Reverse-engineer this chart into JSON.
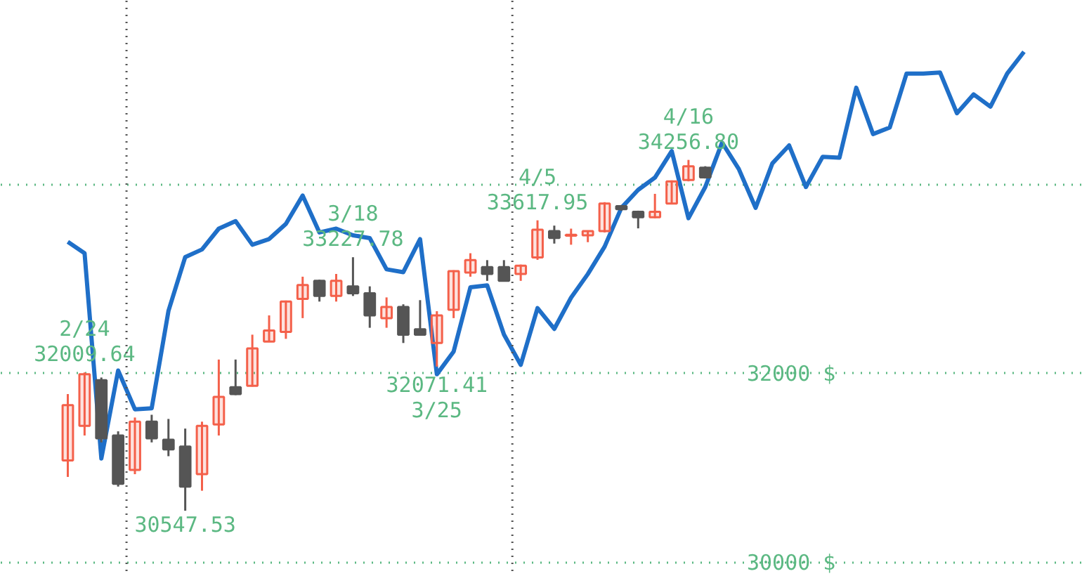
{
  "chart_data": {
    "type": "candlestick",
    "categories": [
      null,
      null,
      null,
      null,
      null,
      null,
      null,
      null,
      null,
      null,
      null,
      null,
      null,
      null,
      null,
      null,
      null,
      null,
      null,
      null,
      null,
      null,
      null,
      null,
      null,
      null,
      null,
      null,
      null,
      null,
      null,
      null,
      null,
      null,
      null,
      null,
      null,
      null,
      null,
      null,
      null,
      null,
      null,
      null,
      null,
      null,
      null,
      null,
      null,
      null,
      null,
      null,
      null,
      null,
      null,
      null,
      null,
      null
    ],
    "ohlc": [
      [
        31080,
        31781,
        30905,
        31664
      ],
      [
        31445,
        32009.64,
        31343,
        31990
      ],
      [
        31927,
        31956,
        31270,
        31314
      ],
      [
        31343,
        31387,
        30803,
        30832
      ],
      [
        30978,
        31533,
        30934,
        31489
      ],
      [
        31489,
        31562,
        31270,
        31314
      ],
      [
        31299,
        31518,
        31124,
        31197
      ],
      [
        31226,
        31416,
        30547.53,
        30803
      ],
      [
        30934,
        31489,
        30759,
        31445
      ],
      [
        31460,
        32146,
        31343,
        31752
      ],
      [
        31854,
        32146,
        31770,
        31781
      ],
      [
        31869,
        32409,
        31860,
        32263
      ],
      [
        32336,
        32613,
        32330,
        32453
      ],
      [
        32438,
        32770,
        32365,
        32759
      ],
      [
        32788,
        33022,
        32584,
        32934
      ],
      [
        32978,
        32990,
        32759,
        32818
      ],
      [
        32818,
        33051,
        32759,
        32978
      ],
      [
        32920,
        33227.78,
        32818,
        32847
      ],
      [
        32847,
        32920,
        32482,
        32613
      ],
      [
        32584,
        32803,
        32482,
        32701
      ],
      [
        32701,
        32730,
        32321,
        32409
      ],
      [
        32467,
        32774,
        32400,
        32409
      ],
      [
        32321,
        32657,
        32071.41,
        32613
      ],
      [
        32672,
        33090,
        32584,
        33080
      ],
      [
        33066,
        33270,
        33022,
        33197
      ],
      [
        33124,
        33197,
        32978,
        33051
      ],
      [
        33124,
        33197,
        32970,
        32978
      ],
      [
        33051,
        33150,
        32978,
        33139
      ],
      [
        33226,
        33617.95,
        33200,
        33518
      ],
      [
        33504,
        33562,
        33372,
        33431
      ],
      [
        33455,
        33530,
        33360,
        33465
      ],
      [
        33460,
        33504,
        33387,
        33504
      ],
      [
        33504,
        33810,
        33490,
        33796
      ],
      [
        33767,
        33780,
        33720,
        33737
      ],
      [
        33708,
        33720,
        33533,
        33650
      ],
      [
        33650,
        33898,
        33640,
        33708
      ],
      [
        33796,
        34040,
        33790,
        34029
      ],
      [
        34044,
        34256.8,
        34030,
        34190
      ],
      [
        34175,
        34190,
        34060,
        34073
      ],
      null,
      null,
      null,
      null,
      null,
      null,
      null,
      null,
      null,
      null,
      null,
      null,
      null,
      null,
      null,
      null,
      null,
      null,
      null
    ],
    "colors": [
      "#f4604a",
      "#f4604a",
      "#555555",
      "#555555",
      "#f4604a",
      "#555555",
      "#555555",
      "#555555",
      "#f4604a",
      "#f4604a",
      "#555555",
      "#f4604a",
      "#f4604a",
      "#f4604a",
      "#f4604a",
      "#555555",
      "#f4604a",
      "#555555",
      "#555555",
      "#f4604a",
      "#555555",
      "#555555",
      "#f4604a",
      "#f4604a",
      "#f4604a",
      "#555555",
      "#555555",
      "#f4604a",
      "#f4604a",
      "#555555",
      "#f4604a",
      "#f4604a",
      "#f4604a",
      "#555555",
      "#555555",
      "#f4604a",
      "#f4604a",
      "#f4604a",
      "#555555",
      null,
      null,
      null,
      null,
      null,
      null,
      null,
      null,
      null,
      null,
      null,
      null,
      null,
      null,
      null,
      null,
      null,
      null,
      null
    ],
    "series": [
      {
        "type": "line",
        "color": "#1f6fc8",
        "values": [
          33390,
          33270,
          31100,
          32030,
          31620,
          31630,
          32660,
          33230,
          33310,
          33530,
          33610,
          33360,
          33420,
          33580,
          33880,
          33490,
          33530,
          33460,
          33430,
          33100,
          33070,
          33420,
          31990,
          32230,
          32910,
          32930,
          32410,
          32090,
          32690,
          32470,
          32800,
          33050,
          33340,
          33750,
          33940,
          34070,
          34350,
          33640,
          33970,
          34440,
          34160,
          33750,
          34220,
          34410,
          33970,
          34290,
          34280,
          35020,
          34530,
          34600,
          35170,
          35170,
          35180,
          34750,
          34950,
          34820,
          35170,
          35400
        ]
      }
    ],
    "ylim": [
      29850,
      35940
    ],
    "yticks": [
      {
        "value": 30000,
        "label": "30000 $"
      },
      {
        "value": 32000,
        "label": "32000 $"
      },
      {
        "value": 34000,
        "label": null
      }
    ],
    "grid": "y",
    "tick_labels": "y",
    "annotations": [
      {
        "text": "2/24\n32009.64",
        "y": 32009.64
      },
      {
        "text": "30547.53",
        "y": 30547.53
      },
      {
        "text": "3/18\n33227.78",
        "y": 33227.78
      },
      {
        "text": "32071.41\n3/25",
        "y": 32071.41
      },
      {
        "text": "4/5\n33617.95",
        "y": 33617.95
      },
      {
        "text": "4/16\n34256.80",
        "y": 34256.8
      }
    ]
  }
}
